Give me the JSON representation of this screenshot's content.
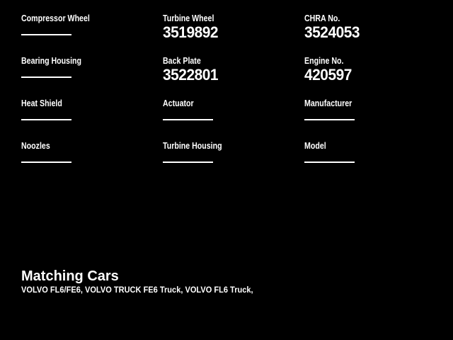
{
  "colors": {
    "background": "#000000",
    "text": "#ffffff",
    "underline": "#ffffff"
  },
  "fields": [
    {
      "label": "Compressor Wheel",
      "value": ""
    },
    {
      "label": "Turbine Wheel",
      "value": "3519892"
    },
    {
      "label": "CHRA No.",
      "value": "3524053"
    },
    {
      "label": "Bearing Housing",
      "value": ""
    },
    {
      "label": "Back Plate",
      "value": "3522801"
    },
    {
      "label": "Engine No.",
      "value": "420597"
    },
    {
      "label": "Heat Shield",
      "value": ""
    },
    {
      "label": "Actuator",
      "value": ""
    },
    {
      "label": "Manufacturer",
      "value": ""
    },
    {
      "label": "Noozles",
      "value": ""
    },
    {
      "label": "Turbine Housing",
      "value": ""
    },
    {
      "label": "Model",
      "value": ""
    }
  ],
  "matching_cars": {
    "heading": "Matching Cars",
    "list": "VOLVO FL6/FE6, VOLVO TRUCK FE6 Truck, VOLVO FL6 Truck,"
  }
}
